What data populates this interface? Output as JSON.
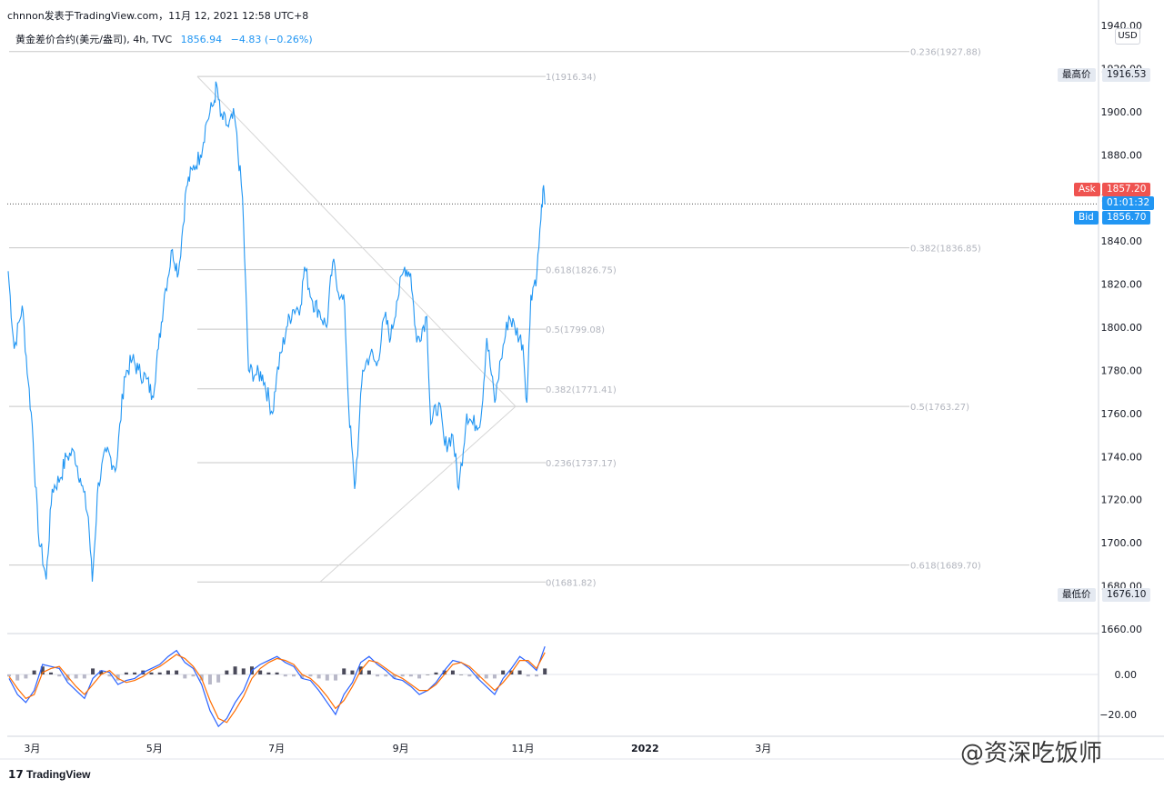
{
  "header": {
    "publisher_line": "chnnon发表于TradingView.com，11月 12, 2021 12:58 UTC+8",
    "symbol": "黄金差价合约(美元/盎司), 4h, TVC",
    "last": "1856.94",
    "change": "−4.83 (−0.26%)"
  },
  "currency_badge": "USD",
  "price_tags": {
    "high_label": "最高价",
    "high_value": "1916.53",
    "low_label": "最低价",
    "low_value": "1676.10",
    "ask_label": "Ask",
    "ask_value": "1857.20",
    "countdown": "01:01:32",
    "bid_label": "Bid",
    "bid_value": "1856.70"
  },
  "footer": {
    "brand": "TradingView"
  },
  "watermark": "@资深吃饭师",
  "chart_data": [
    {
      "type": "line",
      "title": "黄金差价合约(美元/盎司), 4h, TVC",
      "y_axis_position": "right",
      "ylim": [
        1660,
        1940
      ],
      "y_ticks": [
        1660,
        1680,
        1700,
        1720,
        1740,
        1760,
        1780,
        1800,
        1820,
        1840,
        1860,
        1880,
        1900,
        1920,
        1940
      ],
      "y_tick_labels": [
        "1660.00",
        "1680.00",
        "1700.00",
        "1720.00",
        "1740.00",
        "1760.00",
        "1780.00",
        "1800.00",
        "1820.00",
        "1840.00",
        "1860.00",
        "1880.00",
        "1900.00",
        "1920.00",
        "1940.00"
      ],
      "x_tick_labels": [
        "3月",
        "5月",
        "7月",
        "9月",
        "11月",
        "2022",
        "3月"
      ],
      "x_tick_dates": [
        "2021-03-01",
        "2021-05-01",
        "2021-07-01",
        "2021-09-01",
        "2021-11-01",
        "2022-01-01",
        "2022-03-01"
      ],
      "x_range": [
        "2021-02-17",
        "2022-08-15"
      ],
      "series": [
        {
          "color": "#2196f3",
          "points": [
            [
              "2021-02-17",
              1826
            ],
            [
              "2021-02-20",
              1790
            ],
            [
              "2021-02-24",
              1810
            ],
            [
              "2021-02-27",
              1775
            ],
            [
              "2021-03-01",
              1755
            ],
            [
              "2021-03-04",
              1705
            ],
            [
              "2021-03-08",
              1683
            ],
            [
              "2021-03-11",
              1725
            ],
            [
              "2021-03-15",
              1730
            ],
            [
              "2021-03-18",
              1740
            ],
            [
              "2021-03-22",
              1742
            ],
            [
              "2021-03-25",
              1730
            ],
            [
              "2021-03-29",
              1712
            ],
            [
              "2021-03-31",
              1682
            ],
            [
              "2021-04-03",
              1728
            ],
            [
              "2021-04-07",
              1742
            ],
            [
              "2021-04-12",
              1735
            ],
            [
              "2021-04-16",
              1777
            ],
            [
              "2021-04-20",
              1785
            ],
            [
              "2021-04-23",
              1780
            ],
            [
              "2021-04-27",
              1776
            ],
            [
              "2021-04-30",
              1768
            ],
            [
              "2021-05-03",
              1790
            ],
            [
              "2021-05-06",
              1815
            ],
            [
              "2021-05-10",
              1836
            ],
            [
              "2021-05-13",
              1825
            ],
            [
              "2021-05-17",
              1865
            ],
            [
              "2021-05-20",
              1873
            ],
            [
              "2021-05-24",
              1880
            ],
            [
              "2021-05-27",
              1895
            ],
            [
              "2021-05-31",
              1905
            ],
            [
              "2021-06-01",
              1913
            ],
            [
              "2021-06-03",
              1898
            ],
            [
              "2021-06-07",
              1893
            ],
            [
              "2021-06-10",
              1898
            ],
            [
              "2021-06-14",
              1860
            ],
            [
              "2021-06-17",
              1780
            ],
            [
              "2021-06-21",
              1778
            ],
            [
              "2021-06-24",
              1778
            ],
            [
              "2021-06-29",
              1760
            ],
            [
              "2021-07-01",
              1777
            ],
            [
              "2021-07-06",
              1800
            ],
            [
              "2021-07-09",
              1808
            ],
            [
              "2021-07-13",
              1810
            ],
            [
              "2021-07-15",
              1828
            ],
            [
              "2021-07-19",
              1812
            ],
            [
              "2021-07-22",
              1808
            ],
            [
              "2021-07-26",
              1800
            ],
            [
              "2021-07-29",
              1830
            ],
            [
              "2021-08-02",
              1814
            ],
            [
              "2021-08-04",
              1810
            ],
            [
              "2021-08-06",
              1763
            ],
            [
              "2021-08-09",
              1725
            ],
            [
              "2021-08-11",
              1750
            ],
            [
              "2021-08-13",
              1780
            ],
            [
              "2021-08-17",
              1788
            ],
            [
              "2021-08-20",
              1782
            ],
            [
              "2021-08-24",
              1805
            ],
            [
              "2021-08-27",
              1795
            ],
            [
              "2021-08-30",
              1812
            ],
            [
              "2021-09-03",
              1828
            ],
            [
              "2021-09-06",
              1825
            ],
            [
              "2021-09-09",
              1793
            ],
            [
              "2021-09-14",
              1805
            ],
            [
              "2021-09-16",
              1755
            ],
            [
              "2021-09-20",
              1765
            ],
            [
              "2021-09-23",
              1745
            ],
            [
              "2021-09-27",
              1750
            ],
            [
              "2021-09-30",
              1725
            ],
            [
              "2021-10-04",
              1760
            ],
            [
              "2021-10-07",
              1755
            ],
            [
              "2021-10-11",
              1757
            ],
            [
              "2021-10-14",
              1795
            ],
            [
              "2021-10-18",
              1765
            ],
            [
              "2021-10-21",
              1785
            ],
            [
              "2021-10-25",
              1805
            ],
            [
              "2021-10-28",
              1800
            ],
            [
              "2021-11-01",
              1792
            ],
            [
              "2021-11-03",
              1765
            ],
            [
              "2021-11-05",
              1815
            ],
            [
              "2021-11-08",
              1825
            ],
            [
              "2021-11-10",
              1850
            ],
            [
              "2021-11-11",
              1864
            ],
            [
              "2021-11-12",
              1857
            ]
          ]
        }
      ],
      "fibonacci_1": {
        "levels": [
          {
            "label": "1(1916.34)",
            "value": 1916.34
          },
          {
            "label": "0.618(1826.75)",
            "value": 1826.75
          },
          {
            "label": "0.5(1799.08)",
            "value": 1799.08
          },
          {
            "label": "0.382(1771.41)",
            "value": 1771.41
          },
          {
            "label": "0.236(1737.17)",
            "value": 1737.17
          },
          {
            "label": "0(1681.82)",
            "value": 1681.82
          }
        ]
      },
      "fibonacci_2": {
        "levels": [
          {
            "label": "0.236(1927.88)",
            "value": 1927.88
          },
          {
            "label": "0.382(1836.85)",
            "value": 1836.85
          },
          {
            "label": "0.5(1763.27)",
            "value": 1763.27
          },
          {
            "label": "0.618(1689.70)",
            "value": 1689.7
          }
        ]
      },
      "price_line": 1857.2,
      "grid": false
    },
    {
      "type": "line",
      "title": "",
      "ylim": [
        -30,
        20
      ],
      "y_ticks": [
        0,
        -20
      ],
      "y_tick_labels": [
        "0.00",
        "−20.00"
      ],
      "series": [
        {
          "color": "#2962ff",
          "values": [
            -2,
            -10,
            -14,
            -8,
            5,
            4,
            3,
            -4,
            -8,
            -12,
            -2,
            2,
            1,
            -5,
            -3,
            -2,
            1,
            3,
            5,
            9,
            12,
            6,
            3,
            -5,
            -18,
            -26,
            -22,
            -14,
            -8,
            2,
            5,
            7,
            9,
            6,
            4,
            -2,
            -3,
            -8,
            -14,
            -20,
            -10,
            -4,
            6,
            9,
            5,
            2,
            -2,
            -3,
            -6,
            -10,
            -8,
            -4,
            2,
            7,
            6,
            3,
            -2,
            -6,
            -10,
            -2,
            3,
            9,
            6,
            2,
            14
          ]
        },
        {
          "color": "#ff6d00",
          "values": [
            -1,
            -7,
            -12,
            -10,
            1,
            3,
            4,
            -1,
            -6,
            -10,
            -5,
            0,
            2,
            -2,
            -4,
            -3,
            -1,
            2,
            4,
            7,
            10,
            8,
            4,
            -2,
            -13,
            -22,
            -24,
            -18,
            -11,
            -2,
            3,
            6,
            8,
            7,
            5,
            0,
            -2,
            -6,
            -11,
            -17,
            -13,
            -6,
            2,
            7,
            6,
            3,
            0,
            -2,
            -5,
            -8,
            -8,
            -5,
            0,
            5,
            6,
            4,
            0,
            -4,
            -8,
            -4,
            1,
            7,
            7,
            3,
            11
          ]
        }
      ],
      "histogram": [
        -1,
        -3,
        -2,
        2,
        4,
        1,
        -1,
        -3,
        -2,
        -2,
        3,
        2,
        -1,
        -3,
        1,
        1,
        2,
        1,
        1,
        2,
        2,
        -2,
        -1,
        -3,
        -5,
        -4,
        2,
        4,
        3,
        4,
        2,
        1,
        1,
        -1,
        -1,
        -2,
        -1,
        -2,
        -3,
        -3,
        3,
        2,
        4,
        2,
        -1,
        -1,
        -2,
        -1,
        -1,
        -2,
        0,
        1,
        2,
        2,
        0,
        -1,
        -2,
        -2,
        -2,
        2,
        2,
        2,
        -1,
        -1,
        3
      ]
    }
  ]
}
